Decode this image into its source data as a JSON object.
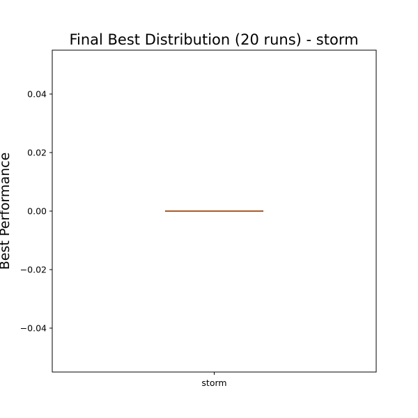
{
  "chart_data": {
    "type": "box",
    "title": "Final Best Distribution (20 runs) - storm",
    "xlabel": "",
    "ylabel": "Best Performance",
    "ylim": [
      -0.055,
      0.055
    ],
    "yticks": [
      0.04,
      0.02,
      0.0,
      -0.02,
      -0.04
    ],
    "ytick_labels": [
      "0.04",
      "0.02",
      "0.00",
      "−0.02",
      "−0.04"
    ],
    "categories": [
      "storm"
    ],
    "series": [
      {
        "category": "storm",
        "min": 0.0,
        "q1": 0.0,
        "median": 0.0,
        "q3": 0.0,
        "max": 0.0
      }
    ],
    "colors": {
      "box": "#000000",
      "median": "#e07b39"
    },
    "grid": false,
    "legend": "none"
  }
}
